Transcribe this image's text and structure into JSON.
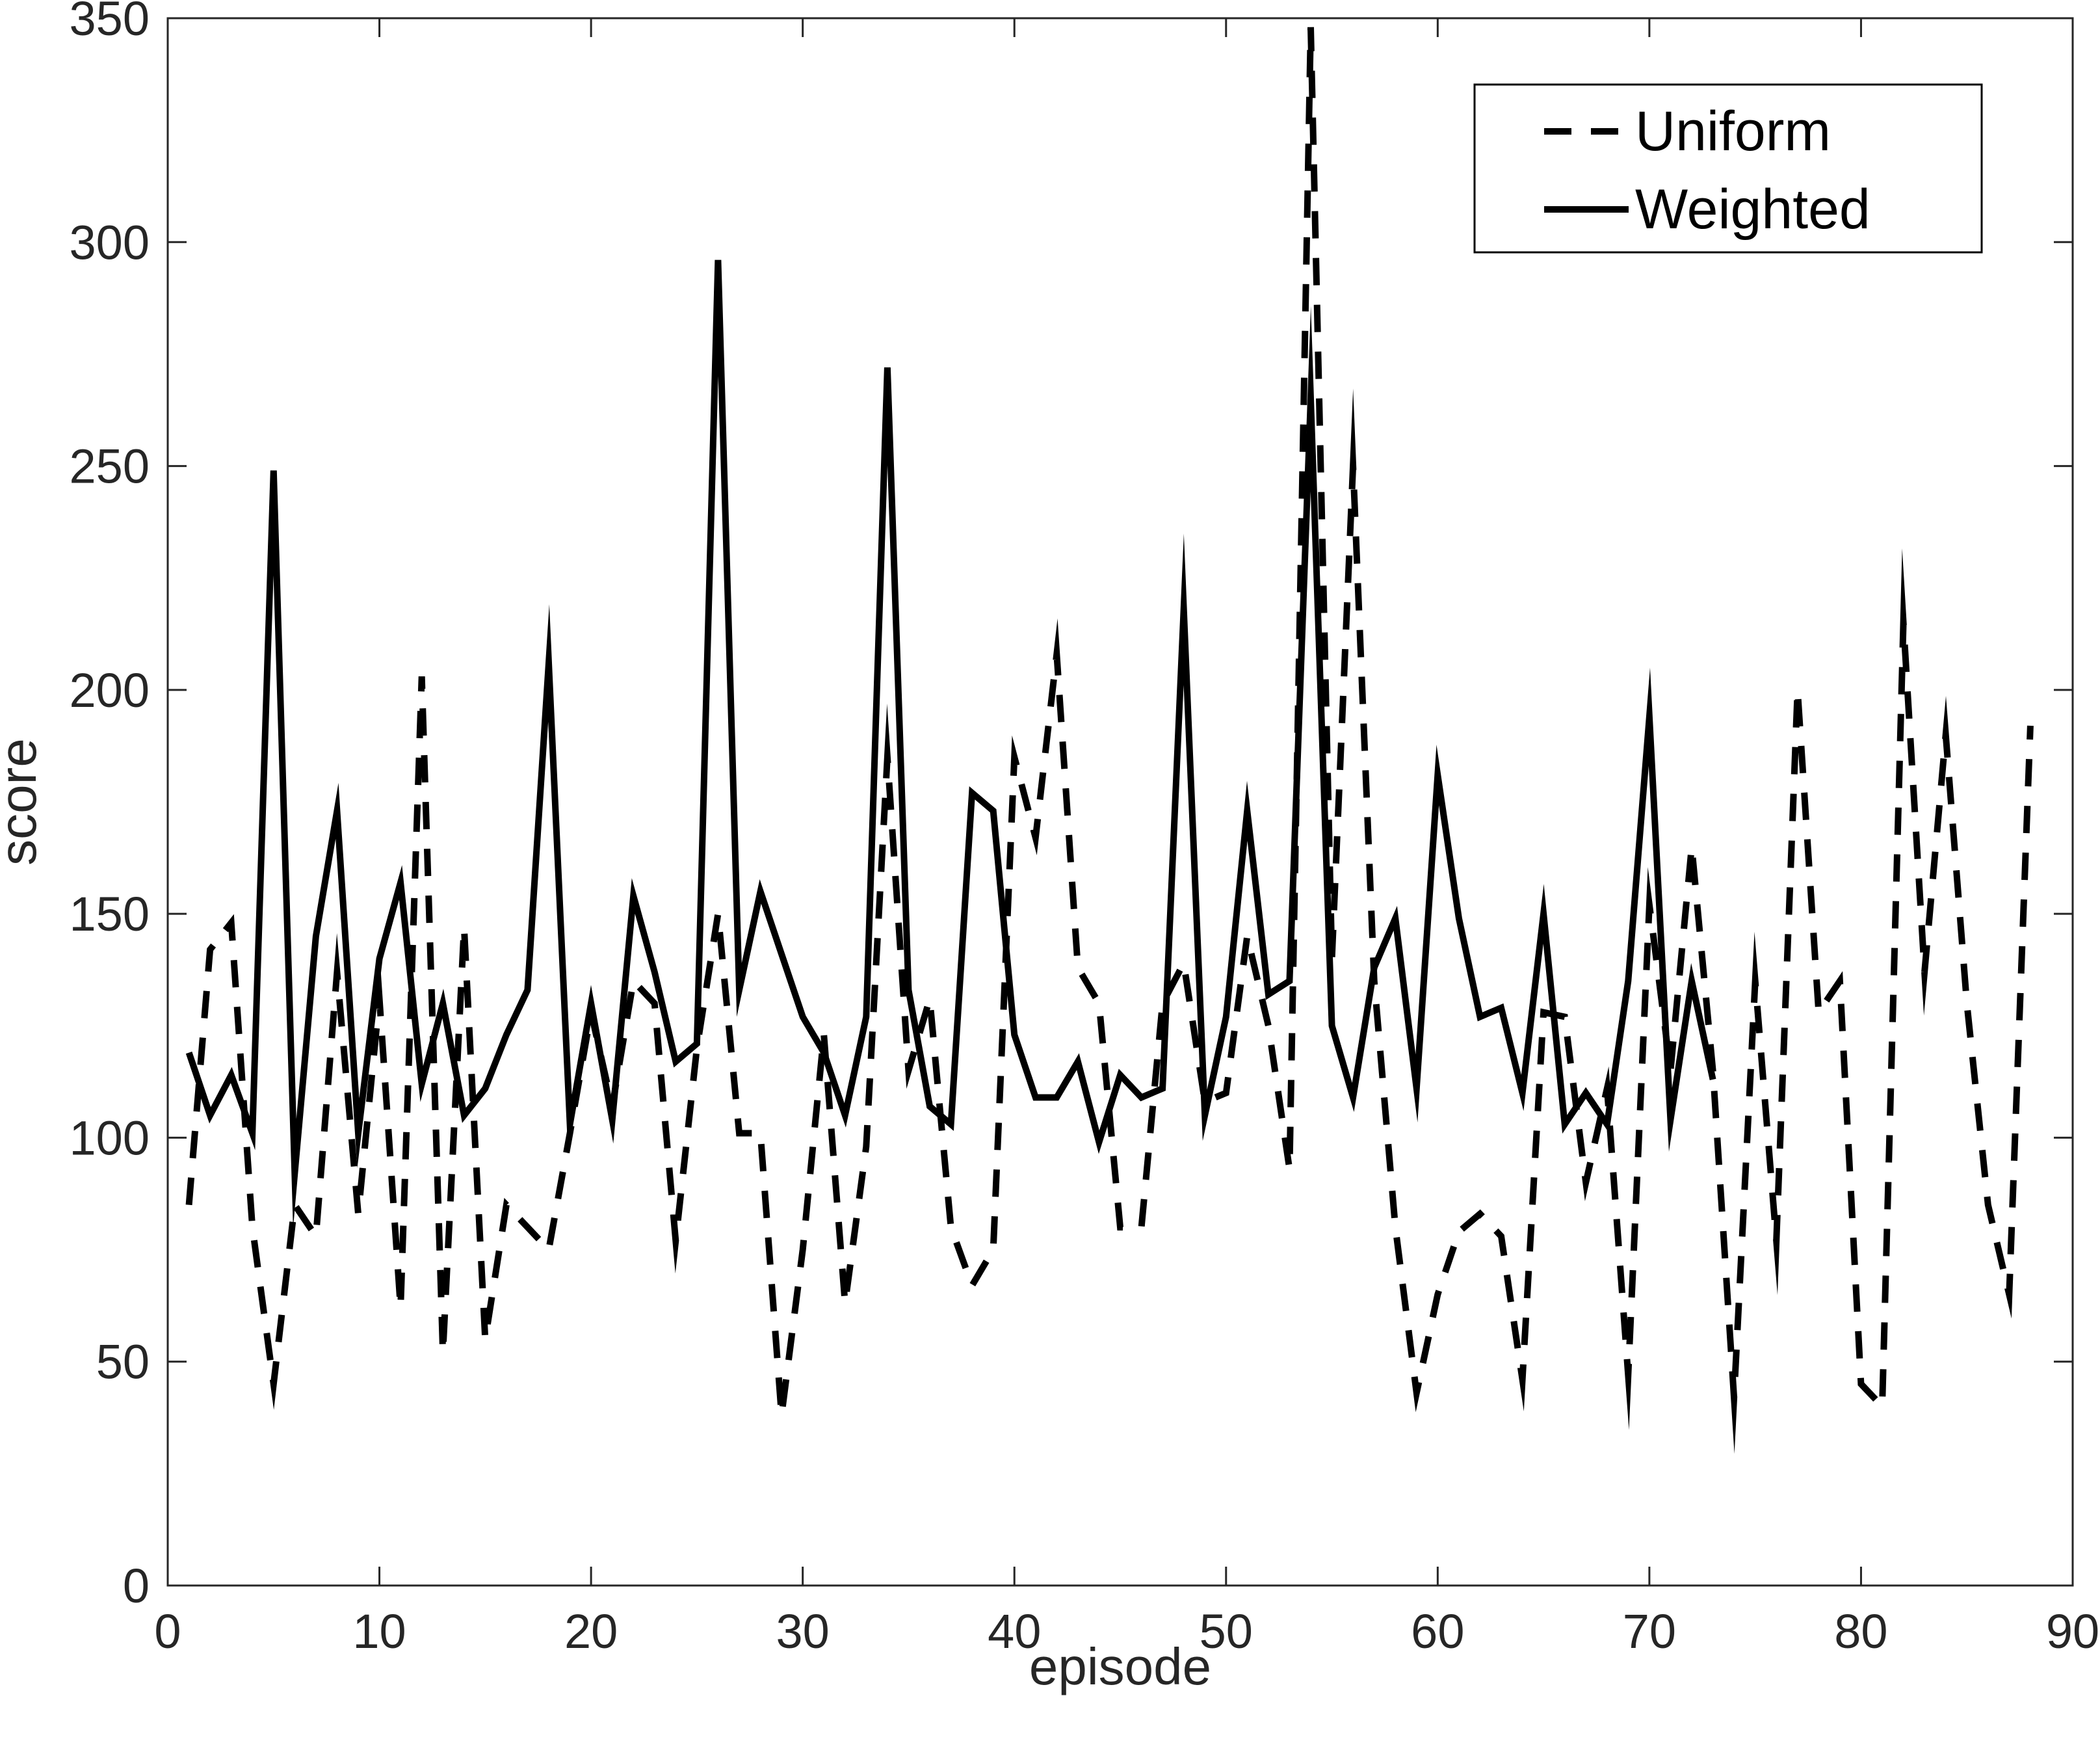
{
  "chart_data": {
    "type": "line",
    "title": "",
    "xlabel": "episode",
    "ylabel": "score",
    "xlim": [
      0,
      90
    ],
    "ylim": [
      0,
      350
    ],
    "xticks": [
      0,
      10,
      20,
      30,
      40,
      50,
      60,
      70,
      80,
      90
    ],
    "yticks": [
      0,
      50,
      100,
      150,
      200,
      250,
      300,
      350
    ],
    "grid": false,
    "legend_position": "top-right",
    "series": [
      {
        "name": "Uniform",
        "style": "dashed",
        "color": "#000000",
        "x": [
          1,
          2,
          3,
          4,
          5,
          6,
          7,
          8,
          9,
          10,
          11,
          12,
          13,
          14,
          15,
          16,
          17,
          18,
          19,
          20,
          21,
          22,
          23,
          24,
          25,
          26,
          27,
          28,
          29,
          30,
          31,
          32,
          33,
          34,
          35,
          36,
          37,
          38,
          39,
          40,
          41,
          42,
          43,
          44,
          45,
          46,
          47,
          48,
          49,
          50,
          51,
          52,
          53,
          54,
          55,
          56,
          57,
          58,
          59,
          60,
          61,
          62,
          63,
          64,
          65,
          66,
          67,
          68,
          69,
          70,
          71,
          72,
          73,
          74,
          75,
          76,
          77,
          78,
          79,
          80,
          81,
          82,
          83,
          84,
          85,
          86,
          87,
          88
        ],
        "values": [
          85,
          142,
          148,
          80,
          45,
          85,
          78,
          137,
          83,
          131,
          62,
          203,
          52,
          147,
          55,
          85,
          80,
          75,
          101,
          128,
          107,
          135,
          130,
          77,
          120,
          150,
          101,
          101,
          38,
          75,
          123,
          63,
          98,
          185,
          115,
          131,
          80,
          67,
          75,
          185,
          167,
          208,
          138,
          130,
          80,
          80,
          130,
          139,
          108,
          110,
          145,
          125,
          93,
          348,
          140,
          250,
          135,
          80,
          43,
          65,
          79,
          83,
          78,
          46,
          128,
          127,
          90,
          111,
          47,
          152,
          115,
          165,
          115,
          42,
          135,
          77,
          200,
          128,
          135,
          45,
          40,
          215,
          137,
          190,
          130,
          85,
          65,
          192
        ]
      },
      {
        "name": "Weighted",
        "style": "solid",
        "color": "#000000",
        "x": [
          1,
          2,
          3,
          4,
          5,
          6,
          7,
          8,
          9,
          10,
          11,
          12,
          13,
          14,
          15,
          16,
          17,
          18,
          19,
          20,
          21,
          22,
          23,
          24,
          25,
          26,
          27,
          28,
          29,
          30,
          31,
          32,
          33,
          34,
          35,
          36,
          37,
          38,
          39,
          40,
          41,
          42,
          43,
          44,
          45,
          46,
          47,
          48,
          49,
          50,
          51,
          52,
          53,
          54,
          55,
          56,
          57,
          58,
          59,
          60,
          61,
          62,
          63,
          64,
          65,
          66,
          67,
          68,
          69,
          70,
          71,
          72,
          73
        ],
        "values": [
          119,
          105,
          114,
          101,
          249,
          92,
          145,
          173,
          101,
          140,
          157,
          112,
          130,
          105,
          111,
          123,
          133,
          206,
          103,
          130,
          104,
          154,
          137,
          117,
          121,
          296,
          133,
          155,
          141,
          127,
          119,
          105,
          127,
          272,
          133,
          107,
          103,
          177,
          173,
          123,
          109,
          109,
          117,
          99,
          114,
          109,
          111,
          218,
          105,
          127,
          173,
          132,
          135,
          265,
          125,
          109,
          138,
          149,
          111,
          181,
          149,
          127,
          129,
          110,
          150,
          103,
          110,
          103,
          135,
          194,
          104,
          135,
          113
        ]
      }
    ]
  }
}
